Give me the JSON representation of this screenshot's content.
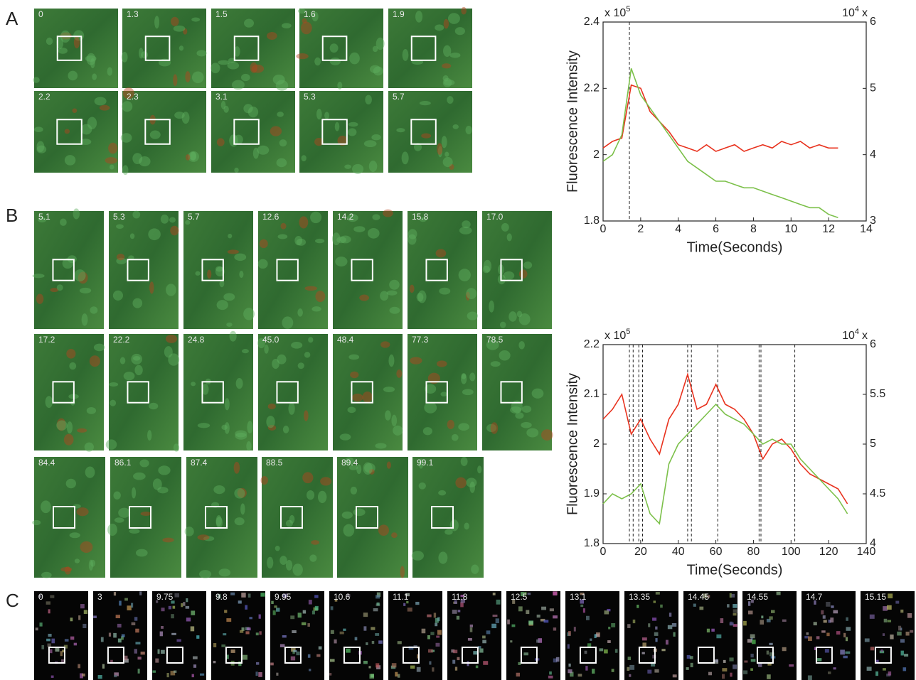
{
  "panels": [
    {
      "label": "A",
      "rows": [
        [
          "0",
          "1.3",
          "1.5",
          "1.6",
          "1.9"
        ],
        [
          "2.2",
          "2.3",
          "3.1",
          "5.3",
          "5.7"
        ]
      ]
    },
    {
      "label": "B",
      "rows": [
        [
          "5.1",
          "5.3",
          "5.7",
          "12.6",
          "14.2",
          "15.8",
          "17.0"
        ],
        [
          "17.2",
          "22.2",
          "24.8",
          "45.0",
          "48.4",
          "77.3",
          "78.5"
        ],
        [
          "84.4",
          "86.1",
          "87.4",
          "88.5",
          "89.4",
          "99.1"
        ]
      ]
    },
    {
      "label": "C",
      "rows": [
        [
          "0",
          "3",
          "9.75",
          "9.8",
          "9.95",
          "10.6",
          "11.1",
          "11.8",
          "12.5",
          "13.1",
          "13.35",
          "14.45",
          "14.55",
          "14.7",
          "15.15"
        ]
      ]
    }
  ],
  "chart_data": [
    {
      "type": "line",
      "xlabel": "Time(Seconds)",
      "ylabel": "Fluorescence Intensity",
      "y_multiplier": {
        "text": "x 10",
        "exp": "5"
      },
      "y2_multiplier": {
        "text": "10",
        "exp": "4",
        "suffix": "x"
      },
      "xlim": [
        0,
        14
      ],
      "xticks": [
        0,
        2,
        4,
        6,
        8,
        10,
        12,
        14
      ],
      "ylim": [
        1.8,
        2.4
      ],
      "yticks": [
        1.8,
        2,
        2.2,
        2.4
      ],
      "y2lim": [
        3,
        6
      ],
      "y2ticks": [
        3,
        4,
        5,
        6
      ],
      "vlines": [
        1.4
      ],
      "x": [
        0,
        0.5,
        1,
        1.5,
        2,
        2.5,
        3,
        3.5,
        4,
        4.5,
        5,
        5.5,
        6,
        6.5,
        7,
        7.5,
        8,
        8.5,
        9,
        9.5,
        10,
        10.5,
        11,
        11.5,
        12,
        12.5
      ],
      "series": [
        {
          "color": "#e8321e",
          "values": [
            2.02,
            2.04,
            2.05,
            2.21,
            2.2,
            2.13,
            2.1,
            2.07,
            2.03,
            2.02,
            2.01,
            2.03,
            2.01,
            2.02,
            2.03,
            2.01,
            2.02,
            2.03,
            2.02,
            2.04,
            2.03,
            2.04,
            2.02,
            2.03,
            2.02,
            2.02
          ]
        },
        {
          "color": "#7cc04a",
          "axis": "y2",
          "values": [
            3.9,
            4.0,
            4.3,
            5.3,
            4.9,
            4.7,
            4.5,
            4.3,
            4.1,
            3.9,
            3.8,
            3.7,
            3.6,
            3.6,
            3.55,
            3.5,
            3.5,
            3.45,
            3.4,
            3.35,
            3.3,
            3.25,
            3.2,
            3.2,
            3.1,
            3.05
          ]
        }
      ]
    },
    {
      "type": "line",
      "xlabel": "Time(Seconds)",
      "ylabel": "Fluorescence Intensity",
      "y_multiplier": {
        "text": "x 10",
        "exp": "5"
      },
      "y2_multiplier": {
        "text": "10",
        "exp": "4",
        "suffix": "x"
      },
      "xlim": [
        0,
        140
      ],
      "xticks": [
        0,
        20,
        40,
        60,
        80,
        100,
        120,
        140
      ],
      "ylim": [
        1.8,
        2.2
      ],
      "yticks": [
        1.8,
        1.9,
        2,
        2.1,
        2.2
      ],
      "y2lim": [
        4,
        6
      ],
      "y2ticks": [
        4,
        4.5,
        5,
        5.5,
        6
      ],
      "vlines": [
        14,
        16,
        19,
        21,
        45,
        47,
        61,
        83,
        84,
        102
      ],
      "x": [
        0,
        5,
        10,
        15,
        20,
        25,
        30,
        35,
        40,
        45,
        50,
        55,
        60,
        65,
        70,
        75,
        80,
        85,
        90,
        95,
        100,
        105,
        110,
        115,
        120,
        125,
        130
      ],
      "series": [
        {
          "color": "#e8321e",
          "values": [
            2.05,
            2.07,
            2.1,
            2.02,
            2.05,
            2.01,
            1.98,
            2.05,
            2.08,
            2.14,
            2.07,
            2.08,
            2.12,
            2.08,
            2.07,
            2.05,
            2.02,
            1.97,
            2.0,
            2.01,
            1.99,
            1.96,
            1.94,
            1.93,
            1.92,
            1.91,
            1.88
          ]
        },
        {
          "color": "#7cc04a",
          "axis": "y2",
          "values": [
            4.4,
            4.5,
            4.45,
            4.5,
            4.6,
            4.3,
            4.2,
            4.8,
            5.0,
            5.1,
            5.2,
            5.3,
            5.4,
            5.3,
            5.25,
            5.2,
            5.1,
            5.0,
            5.05,
            5.0,
            5.0,
            4.85,
            4.75,
            4.65,
            4.55,
            4.45,
            4.3
          ]
        }
      ]
    }
  ]
}
